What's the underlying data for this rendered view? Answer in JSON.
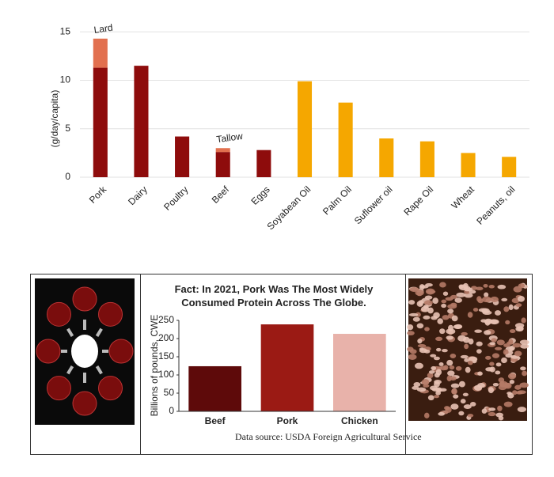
{
  "chart_data": [
    {
      "type": "bar",
      "stacked": true,
      "ylabel": "(g/day/capita)",
      "categories": [
        "Pork",
        "Dairy",
        "Poultry",
        "Beef",
        "Eggs",
        "Soyabean Oil",
        "Palm Oil",
        "Suflower oil",
        "Rape Oil",
        "Wheat",
        "Peanuts, oil"
      ],
      "series": [
        {
          "values": [
            11.3,
            11.5,
            4.2,
            2.6,
            2.8,
            9.9,
            7.7,
            4.0,
            3.7,
            2.5,
            2.1
          ],
          "colors": [
            "#8e0c0c",
            "#8e0c0c",
            "#8e0c0c",
            "#8e0c0c",
            "#8e0c0c",
            "#f5a700",
            "#f5a700",
            "#f5a700",
            "#f5a700",
            "#f5a700",
            "#f5a700"
          ]
        },
        {
          "values": [
            3.0,
            null,
            null,
            0.4,
            null,
            null,
            null,
            null,
            null,
            null,
            null
          ],
          "color": "#e2704f"
        }
      ],
      "annotations": [
        {
          "text": "Lard",
          "category": "Pork"
        },
        {
          "text": "Tallow",
          "category": "Beef"
        }
      ],
      "ylim": [
        0,
        16
      ],
      "yticks": [
        0,
        5,
        10,
        15
      ],
      "grid": true
    },
    {
      "type": "bar",
      "title": "Fact: In 2021, Pork Was The Most Widely Consumed Protein Across The Globe.",
      "ylabel": "Billions of pounds, CWE",
      "categories": [
        "Beef",
        "Pork",
        "Chicken"
      ],
      "values": [
        124,
        239,
        213
      ],
      "colors": [
        "#5e0a0a",
        "#9b1a14",
        "#e8b2aa"
      ],
      "ylim": [
        0,
        250
      ],
      "yticks": [
        0,
        50,
        100,
        150,
        200,
        250
      ],
      "grid": false,
      "source": "Data source: USDA Foreign Agricultural Service"
    }
  ]
}
